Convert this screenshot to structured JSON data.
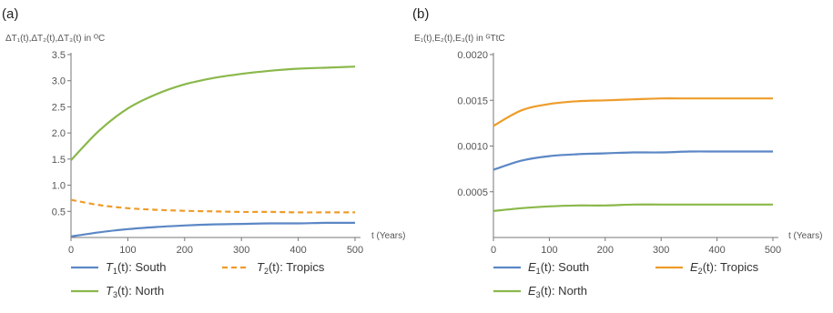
{
  "chart_data": [
    {
      "type": "line",
      "panel_label": "(a)",
      "ylabel": "ΔT₁(t),ΔT₂(t),ΔT₃(t) in ᴼC",
      "xlabel": "t (Years)",
      "xlim": [
        0,
        500
      ],
      "ylim": [
        0,
        3.5
      ],
      "xticks": [
        "0",
        "100",
        "200",
        "300",
        "400",
        "500"
      ],
      "yticks": [
        "0.5",
        "1.0",
        "1.5",
        "2.0",
        "2.5",
        "3.0",
        "3.5"
      ],
      "ytick_values": [
        0.5,
        1.0,
        1.5,
        2.0,
        2.5,
        3.0,
        3.5
      ],
      "grid": false,
      "legend_position": "bottom",
      "x": [
        0,
        50,
        100,
        150,
        200,
        250,
        300,
        350,
        400,
        450,
        500
      ],
      "series": [
        {
          "name": "T1(t): South",
          "var": "T",
          "sub": "1",
          "suffix": "(t): South",
          "color": "#5b87c5",
          "dash": "solid",
          "values": [
            0.02,
            0.1,
            0.16,
            0.2,
            0.23,
            0.25,
            0.26,
            0.27,
            0.27,
            0.28,
            0.28
          ]
        },
        {
          "name": "T2(t): Tropics",
          "var": "T",
          "sub": "2",
          "suffix": "(t): Tropics",
          "color": "#ee9c2a",
          "dash": "dashed",
          "values": [
            0.72,
            0.62,
            0.56,
            0.53,
            0.51,
            0.5,
            0.49,
            0.49,
            0.48,
            0.48,
            0.48
          ]
        },
        {
          "name": "T3(t): North",
          "var": "T",
          "sub": "3",
          "suffix": "(t): North",
          "color": "#8ab84a",
          "dash": "solid",
          "values": [
            1.48,
            2.05,
            2.47,
            2.74,
            2.93,
            3.05,
            3.13,
            3.19,
            3.23,
            3.25,
            3.27
          ]
        }
      ]
    },
    {
      "type": "line",
      "panel_label": "(b)",
      "ylabel": "E₁(t),E₂(t),E₃(t) in ᴳTtC",
      "xlabel": "t (Years)",
      "xlim": [
        0,
        500
      ],
      "ylim": [
        0,
        0.002
      ],
      "xticks": [
        "0",
        "100",
        "200",
        "300",
        "400",
        "500"
      ],
      "yticks": [
        "0.0005",
        "0.0010",
        "0.0015",
        "0.0020"
      ],
      "ytick_values": [
        0.0005,
        0.001,
        0.0015,
        0.002
      ],
      "grid": false,
      "legend_position": "bottom",
      "x": [
        0,
        50,
        100,
        150,
        200,
        250,
        300,
        350,
        400,
        450,
        500
      ],
      "series": [
        {
          "name": "E1(t): South",
          "var": "E",
          "sub": "1",
          "suffix": "(t): South",
          "color": "#5b87c5",
          "dash": "solid",
          "values": [
            0.00074,
            0.00084,
            0.00089,
            0.00091,
            0.00092,
            0.00093,
            0.00093,
            0.00094,
            0.00094,
            0.00094,
            0.00094
          ]
        },
        {
          "name": "E2(t): Tropics",
          "var": "E",
          "sub": "2",
          "suffix": "(t): Tropics",
          "color": "#ee9c2a",
          "dash": "solid",
          "values": [
            0.00122,
            0.00139,
            0.00146,
            0.00149,
            0.0015,
            0.00151,
            0.00152,
            0.00152,
            0.00152,
            0.00152,
            0.00152
          ]
        },
        {
          "name": "E3(t): North",
          "var": "E",
          "sub": "3",
          "suffix": "(t): North",
          "color": "#8ab84a",
          "dash": "solid",
          "values": [
            0.00029,
            0.00032,
            0.00034,
            0.00035,
            0.00035,
            0.00036,
            0.00036,
            0.00036,
            0.00036,
            0.00036,
            0.00036
          ]
        }
      ]
    }
  ]
}
